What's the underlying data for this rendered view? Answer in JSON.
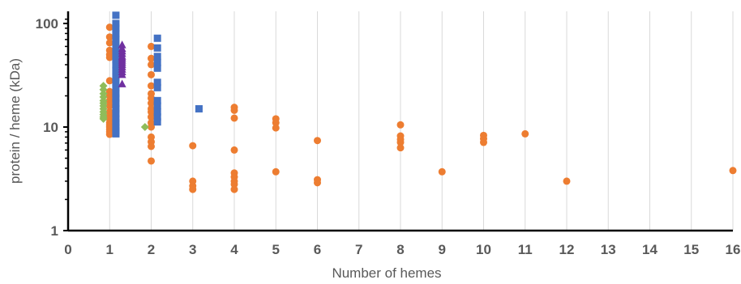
{
  "chart_data": {
    "type": "scatter",
    "title": "",
    "xlabel": "Number of hemes",
    "ylabel": "protein / heme (kDa)",
    "xlim": [
      0,
      16
    ],
    "ylim": [
      1,
      120
    ],
    "y_scale": "log",
    "x_ticks": [
      "0",
      "1",
      "2",
      "3",
      "4",
      "5",
      "6",
      "7",
      "8",
      "9",
      "10",
      "11",
      "12",
      "13",
      "14",
      "15",
      "16"
    ],
    "y_ticks": [
      "1",
      "10",
      "100"
    ],
    "grid": "vertical",
    "colors": {
      "orange": "#ed7d31",
      "blue": "#4472c4",
      "green": "#8fbc5a",
      "purple": "#7030a0",
      "grid": "#d9d9d9",
      "axis": "#000000",
      "text": "#595959"
    },
    "series": [
      {
        "marker": "circle",
        "color": "#ed7d31",
        "points": [
          [
            1,
            92
          ],
          [
            1,
            74
          ],
          [
            1,
            65
          ],
          [
            1,
            55
          ],
          [
            1,
            50
          ],
          [
            1,
            47
          ],
          [
            1,
            28
          ],
          [
            1,
            22
          ],
          [
            1,
            20
          ],
          [
            1,
            18
          ],
          [
            1,
            16
          ],
          [
            1,
            14
          ],
          [
            1,
            13
          ],
          [
            1,
            12
          ],
          [
            1,
            11
          ],
          [
            1,
            10.5
          ],
          [
            1,
            10
          ],
          [
            1,
            9.5
          ],
          [
            1,
            9
          ],
          [
            1,
            8.5
          ],
          [
            2,
            60
          ],
          [
            2,
            46
          ],
          [
            2,
            40
          ],
          [
            2,
            32
          ],
          [
            2,
            25
          ],
          [
            2,
            21
          ],
          [
            2,
            19
          ],
          [
            2,
            17
          ],
          [
            2,
            15
          ],
          [
            2,
            14
          ],
          [
            2,
            12.5
          ],
          [
            2,
            11
          ],
          [
            2,
            10
          ],
          [
            2,
            8
          ],
          [
            2,
            7.2
          ],
          [
            2,
            6.5
          ],
          [
            2,
            4.7
          ],
          [
            3,
            6.6
          ],
          [
            3,
            3.0
          ],
          [
            3,
            2.7
          ],
          [
            3,
            2.5
          ],
          [
            4,
            15.5
          ],
          [
            4,
            14.5
          ],
          [
            4,
            12.2
          ],
          [
            4,
            6.0
          ],
          [
            4,
            3.6
          ],
          [
            4,
            3.3
          ],
          [
            4,
            3.0
          ],
          [
            4,
            2.8
          ],
          [
            4,
            2.5
          ],
          [
            5,
            12.0
          ],
          [
            5,
            11.0
          ],
          [
            5,
            9.8
          ],
          [
            5,
            3.7
          ],
          [
            6,
            7.4
          ],
          [
            6,
            3.1
          ],
          [
            6,
            2.9
          ],
          [
            8,
            10.5
          ],
          [
            8,
            8.2
          ],
          [
            8,
            7.6
          ],
          [
            8,
            7.1
          ],
          [
            8,
            6.3
          ],
          [
            9,
            3.7
          ],
          [
            10,
            8.3
          ],
          [
            10,
            7.7
          ],
          [
            10,
            7.1
          ],
          [
            11,
            8.6
          ],
          [
            12,
            3.0
          ],
          [
            16,
            3.8
          ]
        ]
      },
      {
        "marker": "square",
        "color": "#4472c4",
        "points": [
          [
            1.15,
            120
          ],
          [
            1.15,
            100
          ],
          [
            1.15,
            90
          ],
          [
            1.15,
            80
          ],
          [
            1.15,
            70
          ],
          [
            1.15,
            60
          ],
          [
            1.15,
            52
          ],
          [
            1.15,
            45
          ],
          [
            1.15,
            40
          ],
          [
            1.15,
            35
          ],
          [
            1.15,
            30
          ],
          [
            1.15,
            27
          ],
          [
            1.15,
            24
          ],
          [
            1.15,
            21
          ],
          [
            1.15,
            19
          ],
          [
            1.15,
            17
          ],
          [
            1.15,
            15
          ],
          [
            1.15,
            13.5
          ],
          [
            1.15,
            12
          ],
          [
            1.15,
            11
          ],
          [
            1.15,
            10
          ],
          [
            1.15,
            9.2
          ],
          [
            1.15,
            8.6
          ],
          [
            2.15,
            72
          ],
          [
            2.15,
            58
          ],
          [
            2.15,
            48
          ],
          [
            2.15,
            42
          ],
          [
            2.15,
            37
          ],
          [
            2.15,
            27
          ],
          [
            2.15,
            24
          ],
          [
            2.15,
            18
          ],
          [
            2.15,
            16
          ],
          [
            2.15,
            14
          ],
          [
            2.15,
            12.5
          ],
          [
            2.15,
            11.2
          ],
          [
            3.15,
            15
          ]
        ]
      },
      {
        "marker": "diamond",
        "color": "#8fbc5a",
        "points": [
          [
            0.85,
            25
          ],
          [
            0.85,
            23
          ],
          [
            0.85,
            21
          ],
          [
            0.85,
            19.5
          ],
          [
            0.85,
            18
          ],
          [
            0.85,
            17
          ],
          [
            0.85,
            16
          ],
          [
            0.85,
            15
          ],
          [
            0.85,
            14
          ],
          [
            0.85,
            13.2
          ],
          [
            0.85,
            12.5
          ],
          [
            0.85,
            12
          ],
          [
            1.85,
            10
          ]
        ]
      },
      {
        "marker": "triangle",
        "color": "#7030a0",
        "points": [
          [
            1.3,
            62
          ],
          [
            1.3,
            57
          ],
          [
            1.3,
            54
          ],
          [
            1.3,
            51
          ],
          [
            1.3,
            48
          ],
          [
            1.3,
            46
          ],
          [
            1.3,
            44
          ],
          [
            1.3,
            42
          ],
          [
            1.3,
            40
          ],
          [
            1.3,
            38
          ],
          [
            1.3,
            36
          ],
          [
            1.3,
            34
          ],
          [
            1.3,
            32
          ],
          [
            1.3,
            26
          ]
        ]
      }
    ]
  }
}
